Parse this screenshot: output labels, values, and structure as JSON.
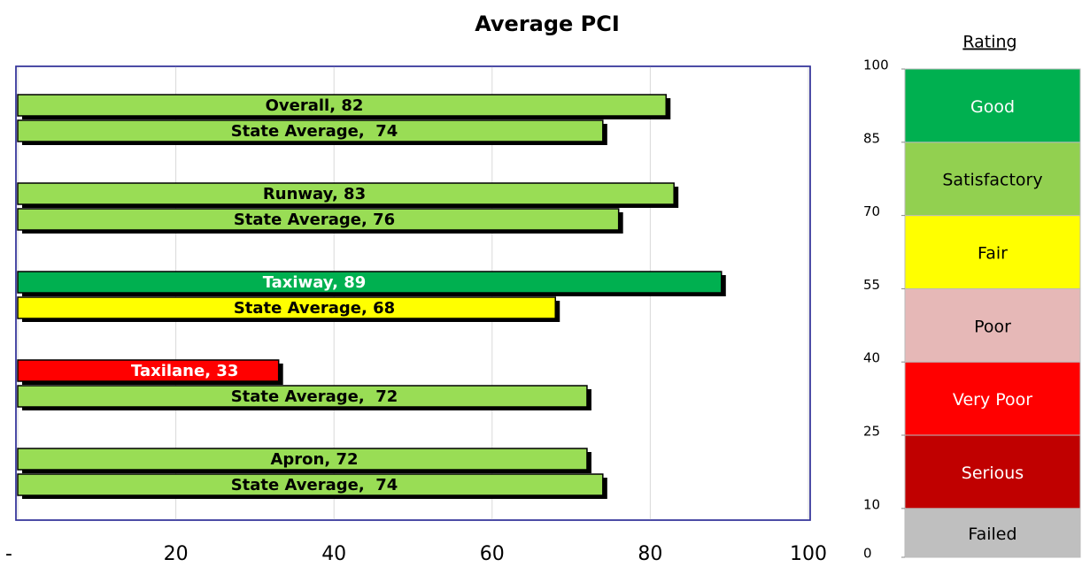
{
  "chart_data": [
    {
      "type": "bar",
      "orientation": "horizontal",
      "title": "Average PCI",
      "values": [
        82,
        74,
        83,
        76,
        89,
        68,
        33,
        72,
        72,
        74
      ],
      "value_labels": [
        "Overall, 82",
        "State Average,  74",
        "Runway, 83",
        "State Average, 76",
        "Taxiway, 89",
        "State Average, 68",
        "Taxilane, 33",
        "State Average,  72",
        "Apron, 72",
        "State Average,  74"
      ],
      "colors": [
        "#99dd55",
        "#99dd55",
        "#99dd55",
        "#99dd55",
        "#00b050",
        "#ffff00",
        "#ff0000",
        "#99dd55",
        "#99dd55",
        "#99dd55"
      ],
      "label_colors": [
        "#000000",
        "#000000",
        "#000000",
        "#000000",
        "#ffffff",
        "#000000",
        "#ffffff",
        "#000000",
        "#000000",
        "#000000"
      ],
      "xlim": [
        0,
        100
      ],
      "xticks": [
        {
          "value": 0,
          "label": "-"
        },
        20,
        40,
        60,
        80,
        100
      ],
      "grid": true
    },
    {
      "type": "scale",
      "title": "Rating",
      "ylim": [
        0,
        100
      ],
      "yticks": [
        0,
        10,
        25,
        40,
        55,
        70,
        85,
        100
      ],
      "bands": [
        {
          "label": "Failed",
          "color": "#bfbfbf",
          "text_color": "#000000"
        },
        {
          "label": "Serious",
          "color": "#c00000",
          "text_color": "#ffffff"
        },
        {
          "label": "Very Poor",
          "color": "#ff0000",
          "text_color": "#ffffff"
        },
        {
          "label": "Poor",
          "color": "#e6b8b7",
          "text_color": "#000000"
        },
        {
          "label": "Fair",
          "color": "#ffff00",
          "text_color": "#000000"
        },
        {
          "label": "Satisfactory",
          "color": "#92d050",
          "text_color": "#000000"
        },
        {
          "label": "Good",
          "color": "#00b050",
          "text_color": "#ffffff"
        }
      ]
    }
  ]
}
